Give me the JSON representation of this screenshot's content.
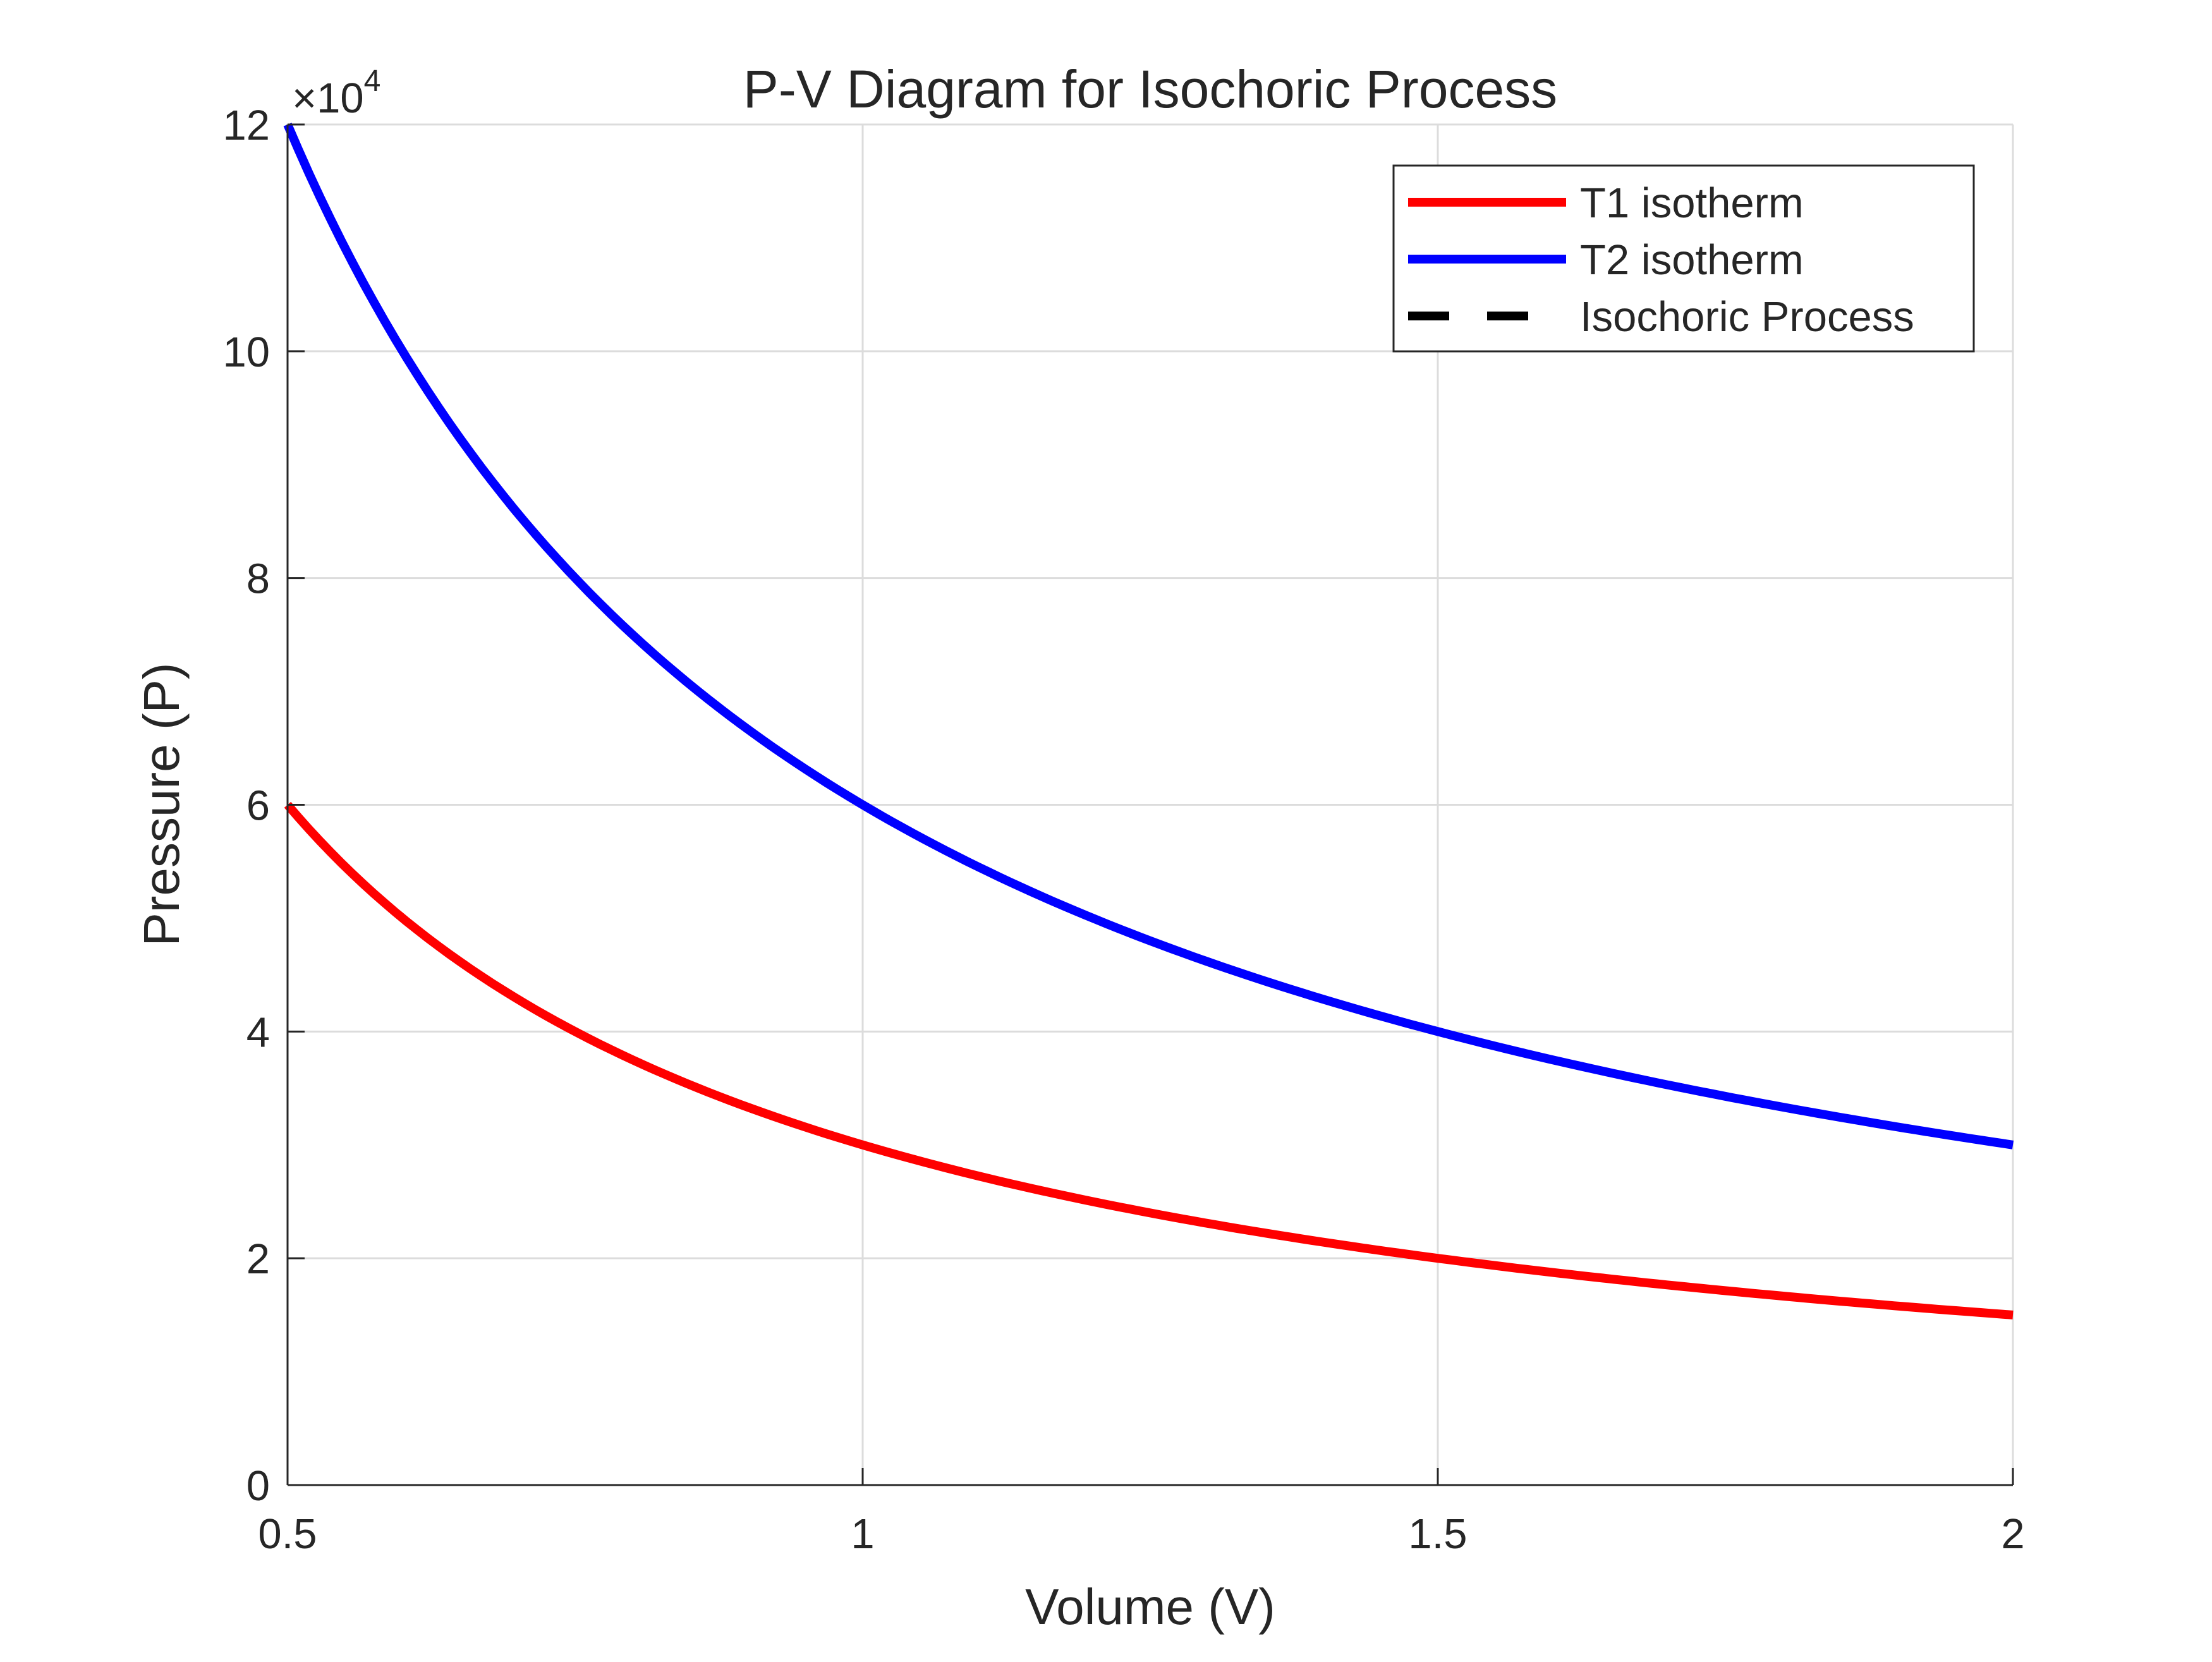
{
  "chart_data": {
    "type": "line",
    "title": "P-V Diagram for Isochoric Process",
    "xlabel": "Volume (V)",
    "ylabel": "Pressure (P)",
    "xlim": [
      0.5,
      2
    ],
    "ylim": [
      0,
      120000
    ],
    "x_ticks": [
      0.5,
      1,
      1.5,
      2
    ],
    "x_tick_labels": [
      "0.5",
      "1",
      "1.5",
      "2"
    ],
    "y_ticks": [
      0,
      20000,
      40000,
      60000,
      80000,
      100000,
      120000
    ],
    "y_tick_labels": [
      "0",
      "2",
      "4",
      "6",
      "8",
      "10",
      "12"
    ],
    "y_exponent": {
      "base": "×10",
      "power": "4"
    },
    "grid": true,
    "legend_location": "top-right",
    "series": [
      {
        "name": "T1 isotherm",
        "color": "#ff0000",
        "style": "solid",
        "x": [
          0.5,
          0.55,
          0.6,
          0.65,
          0.7,
          0.75,
          0.8,
          0.85,
          0.9,
          0.95,
          1.0,
          1.1,
          1.2,
          1.3,
          1.4,
          1.5,
          1.6,
          1.7,
          1.8,
          1.9,
          2.0
        ],
        "y": [
          60000,
          54545,
          50000,
          46154,
          42857,
          40000,
          37500,
          35294,
          33333,
          31579,
          30000,
          27273,
          25000,
          23077,
          21429,
          20000,
          18750,
          17647,
          16667,
          15789,
          15000
        ]
      },
      {
        "name": "T2 isotherm",
        "color": "#0000ff",
        "style": "solid",
        "x": [
          0.5,
          0.55,
          0.6,
          0.65,
          0.7,
          0.75,
          0.8,
          0.85,
          0.9,
          0.95,
          1.0,
          1.1,
          1.2,
          1.3,
          1.4,
          1.5,
          1.6,
          1.7,
          1.8,
          1.9,
          2.0
        ],
        "y": [
          120000,
          109091,
          100000,
          92308,
          85714,
          80000,
          75000,
          70588,
          66667,
          63158,
          60000,
          54545,
          50000,
          46154,
          42857,
          40000,
          37500,
          35294,
          33333,
          31579,
          30000
        ]
      },
      {
        "name": "Isochoric Process",
        "color": "#000000",
        "style": "dashed",
        "x": [],
        "y": []
      }
    ]
  }
}
